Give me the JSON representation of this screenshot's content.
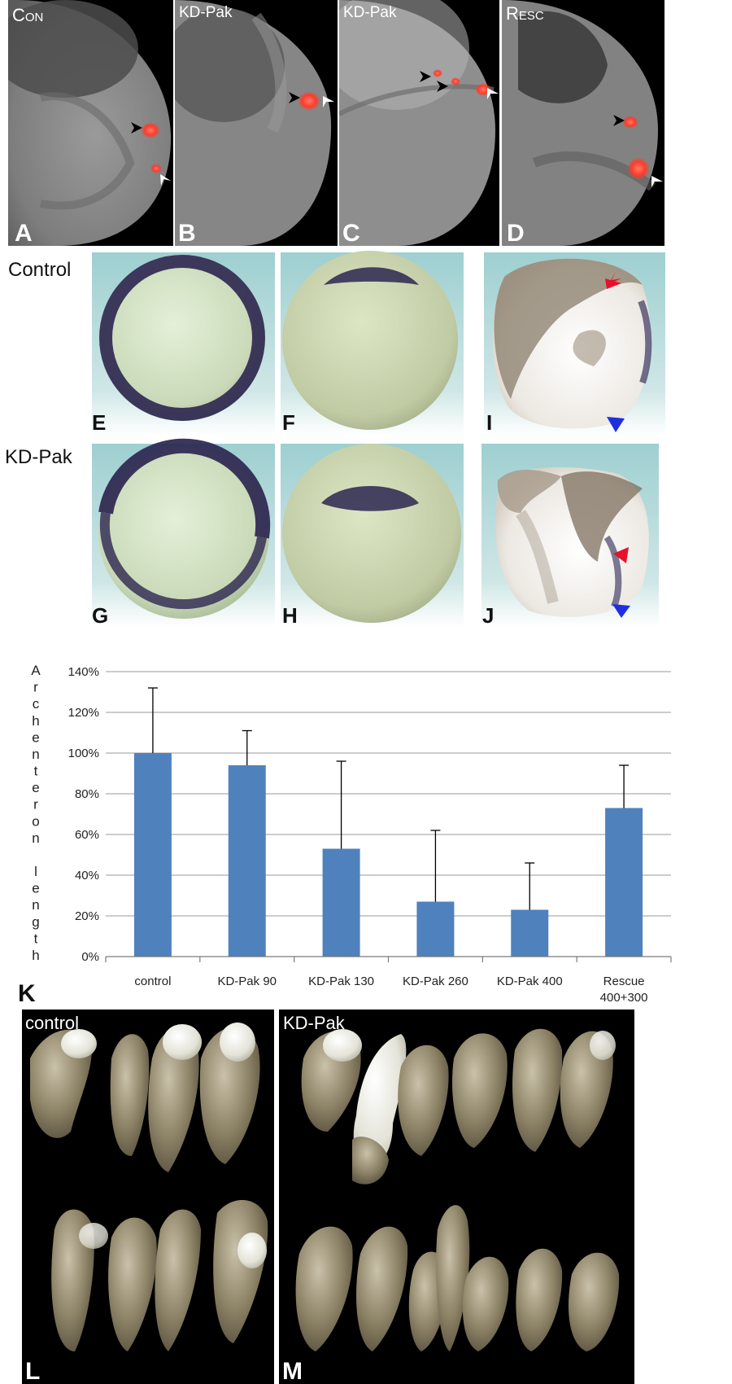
{
  "top_panels": [
    {
      "id": "A",
      "title": "Con"
    },
    {
      "id": "B",
      "title": "KD-Pak"
    },
    {
      "id": "C",
      "title": "KD-Pak"
    },
    {
      "id": "D",
      "title": "Resc"
    }
  ],
  "row_labels": {
    "control": "Control",
    "kdpak": "KD-Pak"
  },
  "middle_panel_letters": {
    "E": "E",
    "F": "F",
    "I": "I",
    "G": "G",
    "H": "H",
    "J": "J"
  },
  "chart_label": "K",
  "chart_data": {
    "type": "bar",
    "categories": [
      "control",
      "KD-Pak 90",
      "KD-Pak 130",
      "KD-Pak 260",
      "KD-Pak 400",
      "Rescue 400+300"
    ],
    "category_lines": [
      [
        "control"
      ],
      [
        "KD-Pak 90"
      ],
      [
        "KD-Pak 130"
      ],
      [
        "KD-Pak 260"
      ],
      [
        "KD-Pak 400"
      ],
      [
        "Rescue",
        "400+300"
      ]
    ],
    "values": [
      100,
      94,
      53,
      27,
      23,
      73
    ],
    "errors": [
      32,
      17,
      43,
      35,
      23,
      21
    ],
    "ylabel": "Archenteron length",
    "ylim": [
      0,
      140
    ],
    "yticks": [
      0,
      20,
      40,
      60,
      80,
      100,
      120,
      140
    ],
    "ytick_labels": [
      "0%",
      "20%",
      "40%",
      "60%",
      "80%",
      "100%",
      "120%",
      "140%"
    ],
    "grid": true,
    "bar_color": "#4f81bd"
  },
  "bottom_panels": [
    {
      "id": "L",
      "title": "control"
    },
    {
      "id": "M",
      "title": "KD-Pak"
    }
  ],
  "colors": {
    "arrow_black": "#000000",
    "arrow_white": "#ffffff",
    "arrow_red": "#e8102a",
    "arrow_blue": "#1f2fe0",
    "stain": "#2c2650",
    "red_signal": "#ff3b2a"
  }
}
